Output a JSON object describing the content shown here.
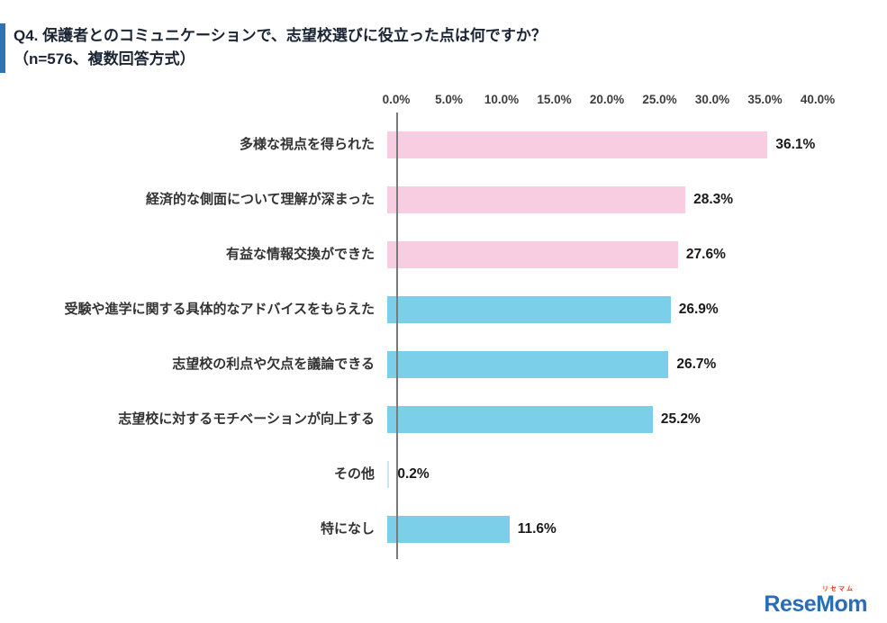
{
  "title": {
    "line1": "Q4. 保護者とのコミュニケーションで、志望校選びに役立った点は何ですか？",
    "line2": "（n=576、複数回答方式）"
  },
  "chart_data": {
    "type": "bar",
    "orientation": "horizontal",
    "title": "保護者とのコミュニケーションで、志望校選びに役立った点",
    "n": "576",
    "categories": [
      "多様な視点を得られた",
      "経済的な側面について理解が深まった",
      "有益な情報交換ができた",
      "受験や進学に関する具体的なアドバイスをもらえた",
      "志望校の利点や欠点を議論できる",
      "志望校に対するモチベーションが向上する",
      "その他",
      "特になし"
    ],
    "values": [
      36.1,
      28.3,
      27.6,
      26.9,
      26.7,
      25.2,
      0.2,
      11.6
    ],
    "value_labels": [
      "36.1%",
      "28.3%",
      "27.6%",
      "26.9%",
      "26.7%",
      "25.2%",
      "0.2%",
      "11.6%"
    ],
    "bar_colors": [
      "#F8CCE1",
      "#F8CCE1",
      "#F8CCE1",
      "#7BCFE9",
      "#7BCFE9",
      "#7BCFE9",
      "#C5E8F5",
      "#7BCFE9"
    ],
    "x_ticks": [
      "0.0%",
      "5.0%",
      "10.0%",
      "15.0%",
      "20.0%",
      "25.0%",
      "30.0%",
      "35.0%",
      "40.0%"
    ],
    "xlim": [
      0,
      40
    ],
    "grid": "none",
    "legend": "none",
    "axis_color": "#7a7a7a"
  },
  "logo": {
    "text": "ReseMom",
    "ruby": "リセマム",
    "color": "#2a6db6",
    "ruby_color": "#e8391d"
  }
}
